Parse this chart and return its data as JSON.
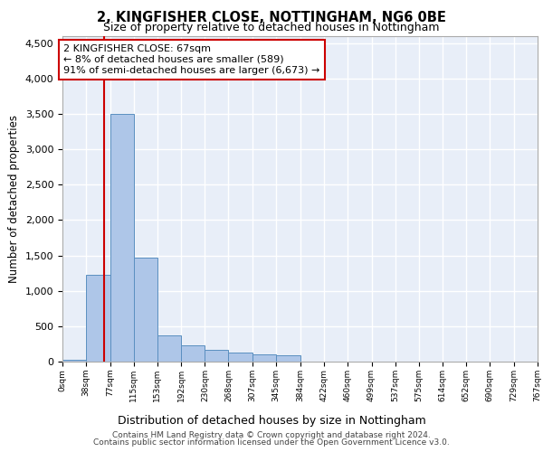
{
  "title1": "2, KINGFISHER CLOSE, NOTTINGHAM, NG6 0BE",
  "title2": "Size of property relative to detached houses in Nottingham",
  "xlabel": "Distribution of detached houses by size in Nottingham",
  "ylabel": "Number of detached properties",
  "annotation_line1": "2 KINGFISHER CLOSE: 67sqm",
  "annotation_line2": "← 8% of detached houses are smaller (589)",
  "annotation_line3": "91% of semi-detached houses are larger (6,673) →",
  "property_size_sqm": 67,
  "bin_edges": [
    0,
    38,
    77,
    115,
    153,
    192,
    230,
    268,
    307,
    345,
    384,
    422,
    460,
    499,
    537,
    575,
    614,
    652,
    690,
    729,
    767
  ],
  "bar_heights": [
    20,
    1230,
    3500,
    1470,
    370,
    230,
    170,
    130,
    100,
    90,
    5,
    0,
    0,
    0,
    5,
    0,
    0,
    0,
    0,
    0
  ],
  "bar_color": "#aec6e8",
  "bar_edge_color": "#5a8fc0",
  "marker_line_color": "#cc0000",
  "background_color": "#e8eef8",
  "annotation_box_color": "#ffffff",
  "annotation_box_edge": "#cc0000",
  "grid_color": "#ffffff",
  "ylim": [
    0,
    4600
  ],
  "yticks": [
    0,
    500,
    1000,
    1500,
    2000,
    2500,
    3000,
    3500,
    4000,
    4500
  ],
  "footer_line1": "Contains HM Land Registry data © Crown copyright and database right 2024.",
  "footer_line2": "Contains public sector information licensed under the Open Government Licence v3.0."
}
